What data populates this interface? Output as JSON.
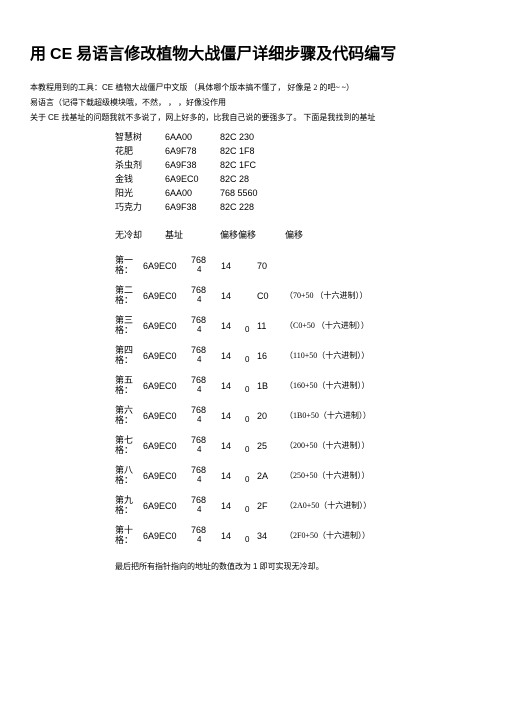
{
  "title": {
    "pre": "用 ",
    "ce": "CE",
    "post": " 易语言修改植物大战僵尸详细步骤及代码编写"
  },
  "intro": [
    {
      "t": "本教程用到的工具：",
      "ce": "CE ",
      "mid": "植物大战僵尸中文版  （具体哪个版本搞不懂了，",
      "gap": "           ",
      "tail": "好像是 2 的吧~ ~）"
    },
    {
      "t": "易语言（记得下载超级模块哦，不然，",
      "gap": "      ，  ，",
      "tail": "好像没作用"
    },
    {
      "t": "关于 ",
      "ce": "CE ",
      "mid": "找基址的问题我就不多说了，网上好多的，比我自己说的要强多了。  下面是我找到的基址"
    }
  ],
  "addrs": [
    {
      "label": "智慧树",
      "base": "6AA00",
      "off": "82C 230"
    },
    {
      "label": "花肥",
      "base": "6A9F78",
      "off": "82C 1F8"
    },
    {
      "label": "杀虫剂",
      "base": "6A9F38",
      "off": "82C 1FC"
    },
    {
      "label": "金钱",
      "base": "6A9EC0",
      "off": "82C 28"
    },
    {
      "label": "阳光",
      "base": "6AA00",
      "off": "768 5560"
    },
    {
      "label": "巧克力",
      "base": "6A9F38",
      "off": "82C 228"
    }
  ],
  "cooldown_header": {
    "label": "无冷却",
    "base": "基址",
    "off1": "偏移偏移",
    "off2": "偏移"
  },
  "slots": [
    {
      "lab1": "第一",
      "lab2": "格：",
      "base": "6A9EC0",
      "k768": "768",
      "sub4": "4",
      "c14": "14",
      "sub0": "",
      "val": "70",
      "note": ""
    },
    {
      "lab1": "第二",
      "lab2": "格：",
      "base": "6A9EC0",
      "k768": "768",
      "sub4": "4",
      "c14": "14",
      "sub0": "",
      "val": "C0",
      "note": "（70+50  （十六进制））"
    },
    {
      "lab1": "第三",
      "lab2": "格：",
      "base": "6A9EC0",
      "k768": "768",
      "sub4": "4",
      "c14": "14",
      "sub0": "0",
      "val": "11",
      "note": "（C0+50  （十六进制））"
    },
    {
      "lab1": "第四",
      "lab2": "格：",
      "base": "6A9EC0",
      "k768": "768",
      "sub4": "4",
      "c14": "14",
      "sub0": "0",
      "val": "16",
      "note": "（110+50（十六进制））"
    },
    {
      "lab1": "第五",
      "lab2": "格：",
      "base": "6A9EC0",
      "k768": "768",
      "sub4": "4",
      "c14": "14",
      "sub0": "0",
      "val": "1B",
      "note": "（160+50（十六进制））"
    },
    {
      "lab1": "第六",
      "lab2": "格：",
      "base": "6A9EC0",
      "k768": "768",
      "sub4": "4",
      "c14": "14",
      "sub0": "0",
      "val": "20",
      "note": "（1B0+50（十六进制））"
    },
    {
      "lab1": "第七",
      "lab2": "格：",
      "base": "6A9EC0",
      "k768": "768",
      "sub4": "4",
      "c14": "14",
      "sub0": "0",
      "val": "25",
      "note": "（200+50（十六进制））"
    },
    {
      "lab1": "第八",
      "lab2": "格：",
      "base": "6A9EC0",
      "k768": "768",
      "sub4": "4",
      "c14": "14",
      "sub0": "0",
      "val": "2A",
      "note": "（250+50（十六进制））"
    },
    {
      "lab1": "第九",
      "lab2": "格：",
      "base": "6A9EC0",
      "k768": "768",
      "sub4": "4",
      "c14": "14",
      "sub0": "0",
      "val": "2F",
      "note": "（2A0+50（十六进制））"
    },
    {
      "lab1": "第十",
      "lab2": "格：",
      "base": "6A9EC0",
      "k768": "768",
      "sub4": "4",
      "c14": "14",
      "sub0": "0",
      "val": "34",
      "note": "（2F0+50（十六进制））"
    }
  ],
  "footer": {
    "pre": "最后把所有指针指向的地址的数值改为",
    "gap": "             ",
    "one": "1 ",
    "post": "即可实现无冷却。"
  }
}
